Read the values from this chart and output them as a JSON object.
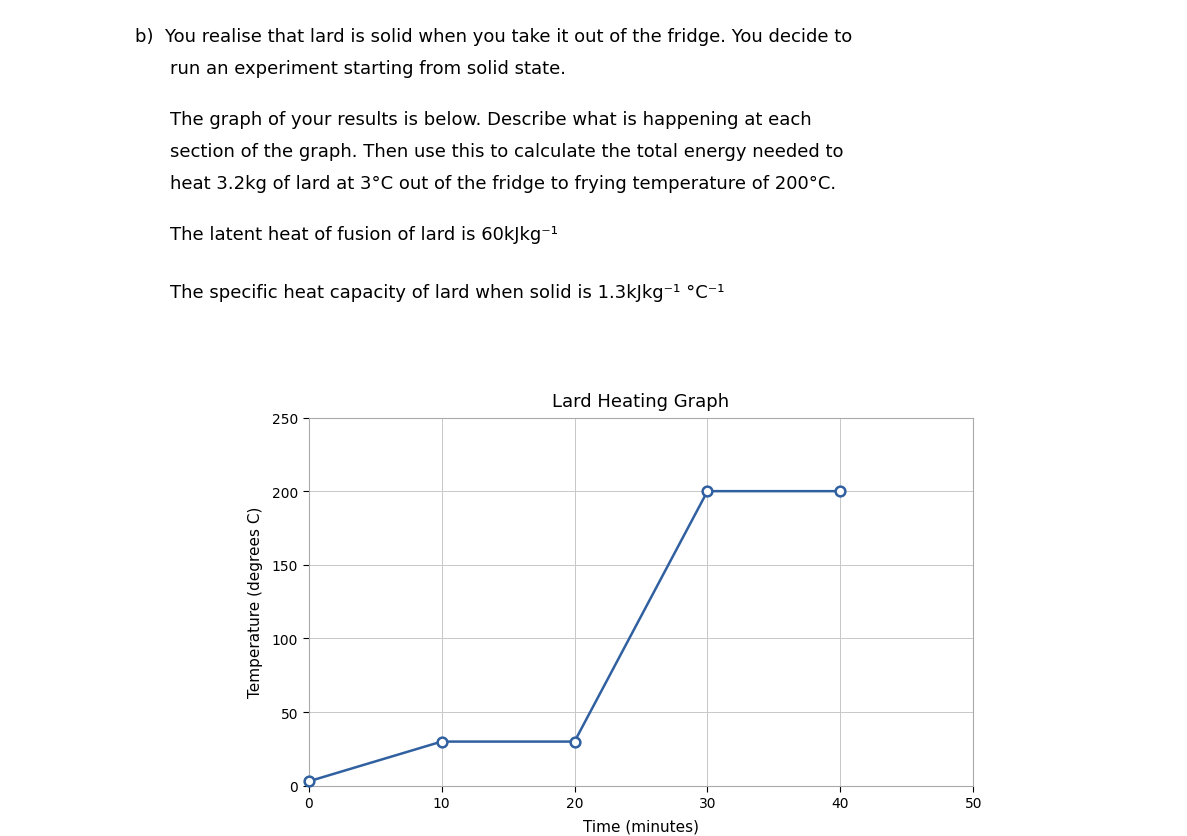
{
  "title": "Lard Heating Graph",
  "xlabel": "Time (minutes)",
  "ylabel": "Temperature (degrees C)",
  "x_data": [
    0,
    10,
    20,
    30,
    40
  ],
  "y_data": [
    3,
    30,
    30,
    200,
    200
  ],
  "xlim": [
    0,
    50
  ],
  "ylim": [
    0,
    250
  ],
  "xticks": [
    0,
    10,
    20,
    30,
    40,
    50
  ],
  "yticks": [
    0,
    50,
    100,
    150,
    200,
    250
  ],
  "line_color": "#3060a0",
  "marker_size": 7,
  "line_width": 1.8,
  "grid_color": "#c8c8c8",
  "background_color": "#ffffff",
  "text_color": "#000000",
  "title_fontsize": 13,
  "label_fontsize": 11,
  "tick_fontsize": 10,
  "fig_width": 11.87,
  "fig_height": 8.37
}
